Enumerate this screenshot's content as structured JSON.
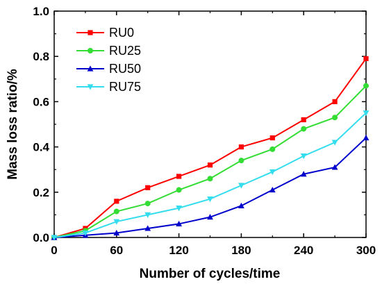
{
  "chart_data": {
    "type": "line",
    "xlabel": "Number of cycles/time",
    "ylabel": "Mass loss ratio/%",
    "xlim": [
      0,
      300
    ],
    "ylim": [
      0,
      1.0
    ],
    "x_ticks": [
      "0",
      "60",
      "120",
      "180",
      "240",
      "300"
    ],
    "y_ticks": [
      "0.0",
      "0.2",
      "0.4",
      "0.6",
      "0.8",
      "1.0"
    ],
    "x": [
      0,
      30,
      60,
      90,
      120,
      150,
      180,
      210,
      240,
      270,
      300
    ],
    "legend_position": "top-left",
    "grid": false,
    "series": [
      {
        "name": "RU0",
        "color": "#ff0000",
        "marker": "square",
        "values": [
          0,
          0.04,
          0.16,
          0.22,
          0.27,
          0.32,
          0.4,
          0.44,
          0.52,
          0.6,
          0.79
        ]
      },
      {
        "name": "RU25",
        "color": "#33dd33",
        "marker": "circle",
        "values": [
          0,
          0.03,
          0.115,
          0.15,
          0.21,
          0.26,
          0.34,
          0.39,
          0.48,
          0.53,
          0.67
        ]
      },
      {
        "name": "RU50",
        "color": "#0000cc",
        "marker": "triangle-up",
        "values": [
          0,
          0.01,
          0.02,
          0.04,
          0.06,
          0.09,
          0.14,
          0.21,
          0.28,
          0.31,
          0.44
        ]
      },
      {
        "name": "RU75",
        "color": "#33ddee",
        "marker": "triangle-down",
        "values": [
          0,
          0.02,
          0.07,
          0.1,
          0.13,
          0.17,
          0.23,
          0.29,
          0.36,
          0.42,
          0.55
        ]
      }
    ]
  }
}
